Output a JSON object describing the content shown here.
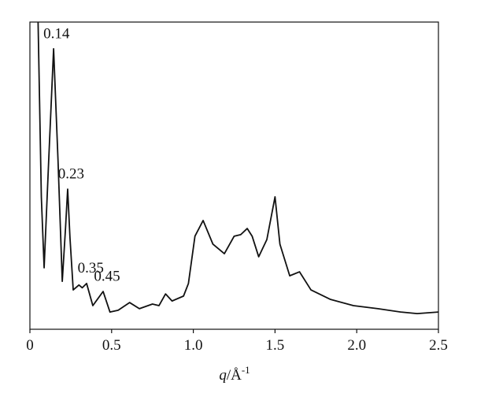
{
  "chart_data": {
    "type": "line",
    "x_label": {
      "symbol": "q",
      "unit": "/Å",
      "exponent": "-1"
    },
    "x": [
      0.05,
      0.07,
      0.087,
      0.115,
      0.145,
      0.172,
      0.198,
      0.218,
      0.231,
      0.245,
      0.265,
      0.3,
      0.32,
      0.347,
      0.385,
      0.448,
      0.49,
      0.54,
      0.61,
      0.67,
      0.75,
      0.79,
      0.83,
      0.87,
      0.94,
      0.97,
      1.01,
      1.06,
      1.12,
      1.19,
      1.25,
      1.29,
      1.33,
      1.36,
      1.4,
      1.45,
      1.5,
      1.53,
      1.59,
      1.65,
      1.72,
      1.84,
      1.98,
      2.13,
      2.27,
      2.37,
      2.5
    ],
    "series": [
      {
        "color": "#111111",
        "values": [
          100,
          43,
          20,
          55,
          91.3,
          55,
          15.6,
          33,
          45.6,
          30,
          12.8,
          14.4,
          13.5,
          14.9,
          7.7,
          12.3,
          5.6,
          6.2,
          8.7,
          6.7,
          8.2,
          7.7,
          11.5,
          9.2,
          10.8,
          14.9,
          30.3,
          35.4,
          27.7,
          24.6,
          30.3,
          30.8,
          32.8,
          30.3,
          23.6,
          29.2,
          43.1,
          27.7,
          17.4,
          18.7,
          12.8,
          9.7,
          7.7,
          6.7,
          5.6,
          5.1,
          5.6
        ]
      }
    ],
    "peak_labels": [
      0.14,
      0.23,
      0.35,
      0.45
    ],
    "xlim": [
      0,
      2.5
    ],
    "xticks": [
      0,
      0.5,
      {
        "value": 1,
        "label": "1.0"
      },
      1.5,
      {
        "value": 2,
        "label": "2.0"
      },
      2.5
    ],
    "ylim": [
      0,
      100
    ]
  }
}
